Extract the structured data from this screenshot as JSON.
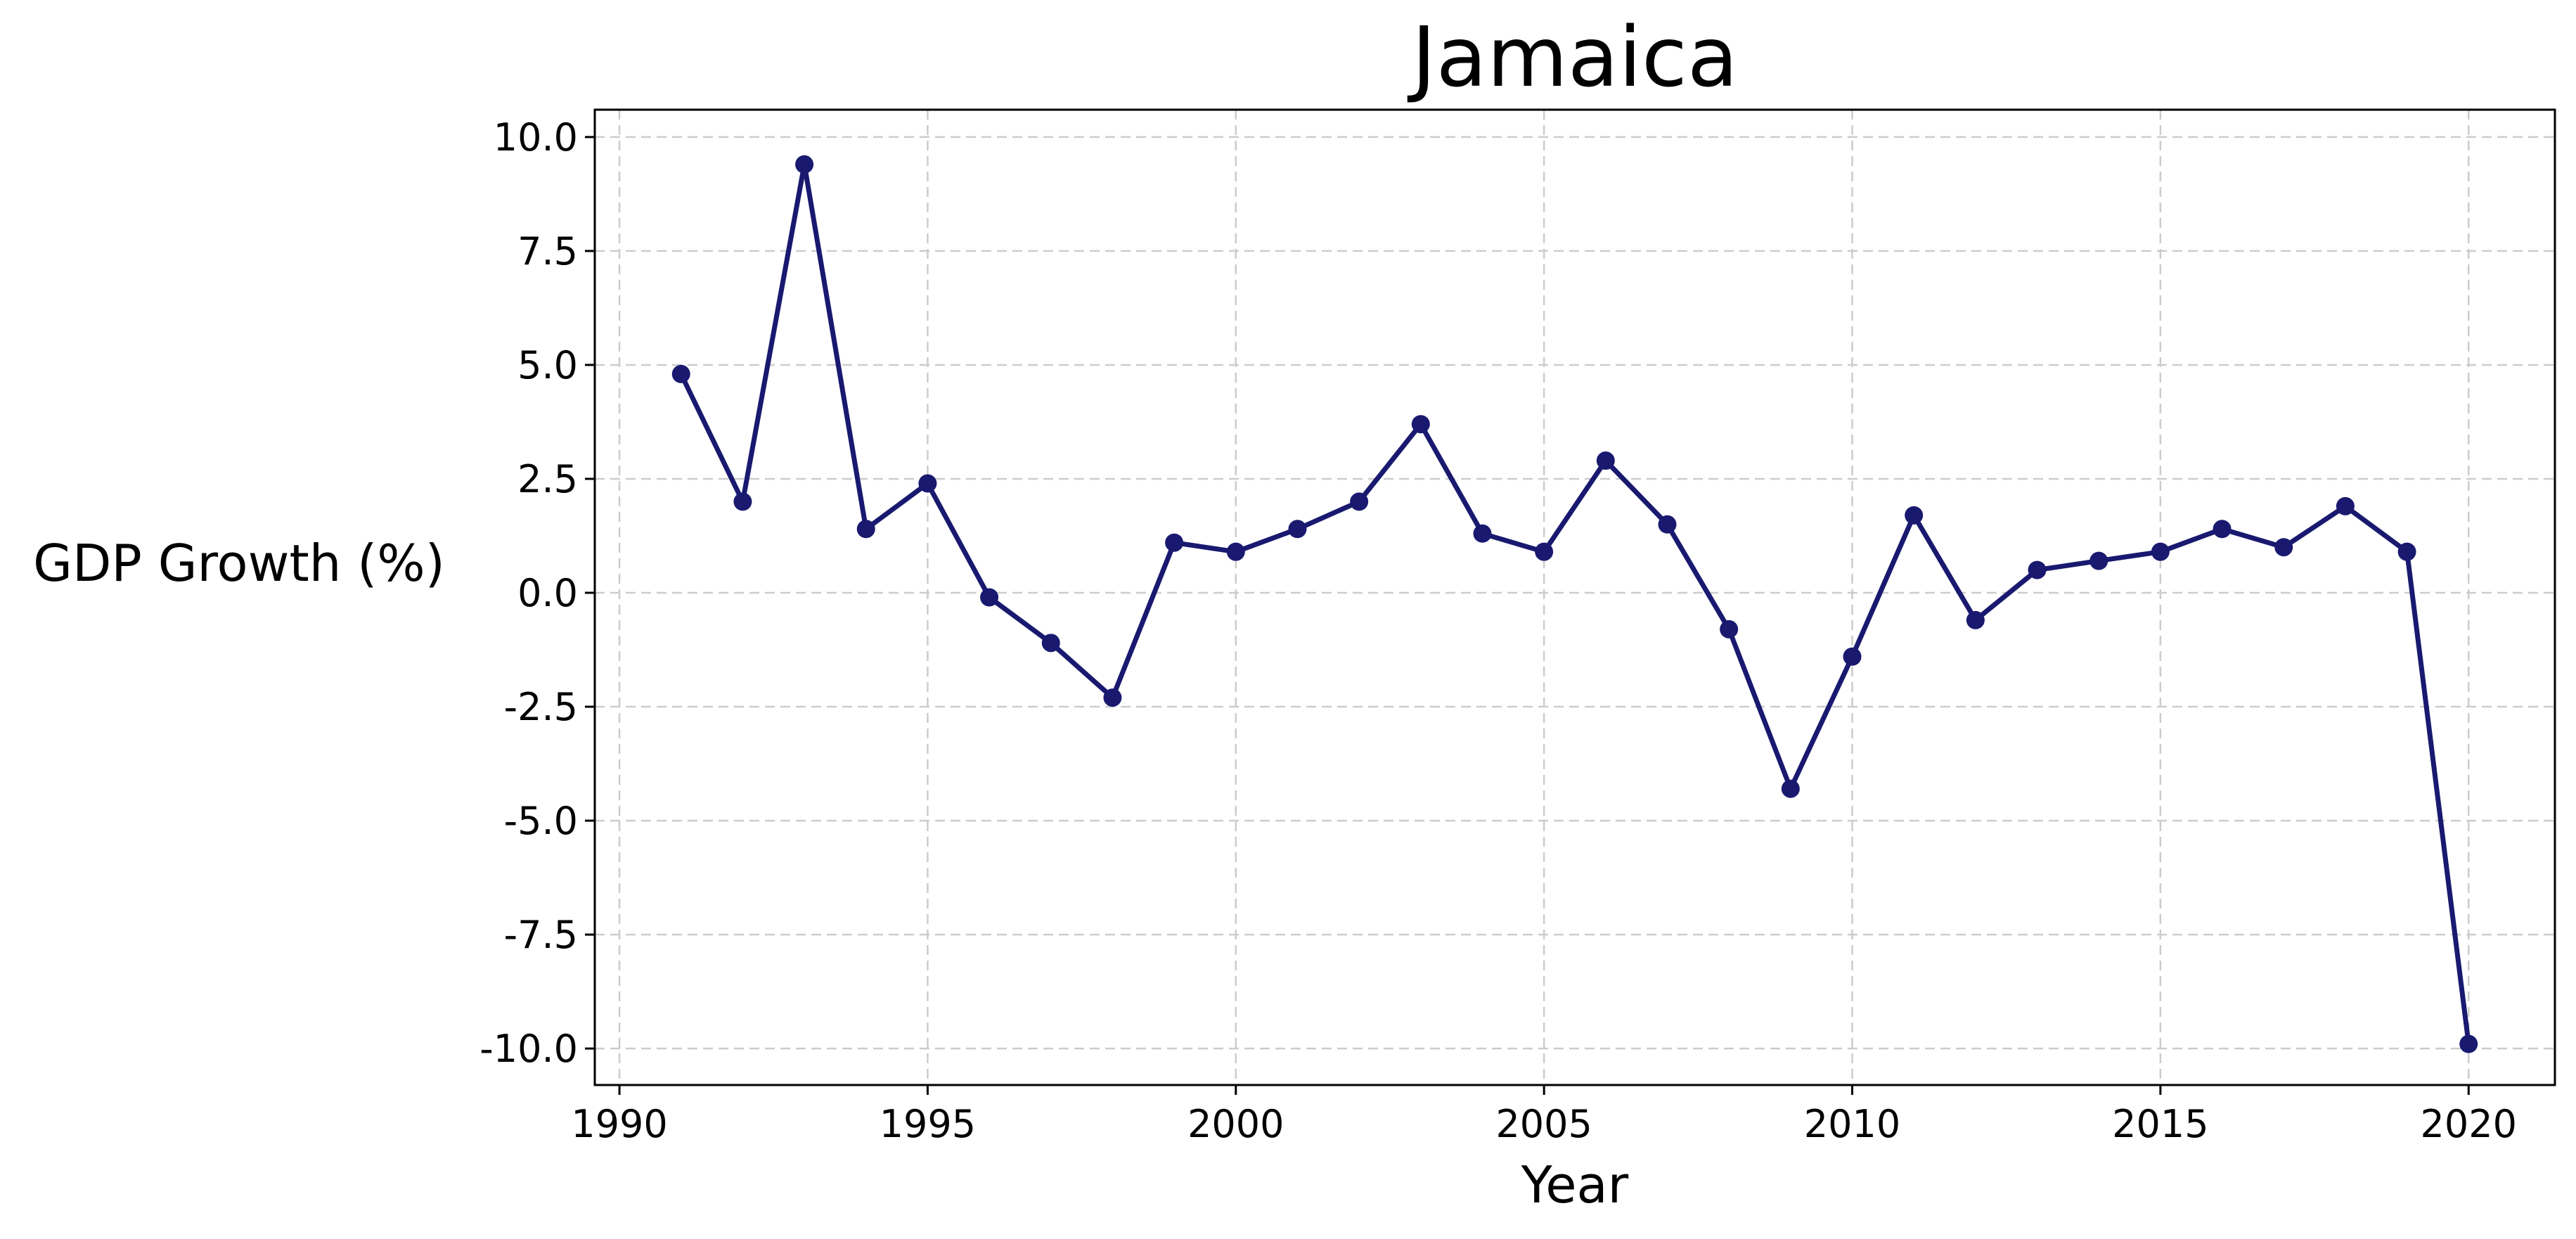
{
  "chart_data": {
    "type": "line",
    "title": "Jamaica",
    "xlabel": "Year",
    "ylabel": "GDP Growth (%)",
    "xlim": [
      1989.6,
      2021.4
    ],
    "ylim": [
      -10.8,
      10.6
    ],
    "xticks": [
      1990,
      1995,
      2000,
      2005,
      2010,
      2015,
      2020
    ],
    "yticks": [
      10.0,
      7.5,
      5.0,
      2.5,
      0.0,
      -2.5,
      -5.0,
      -7.5,
      -10.0
    ],
    "grid": true,
    "line_color": "#191970",
    "series": [
      {
        "x": [
          1991,
          1992,
          1993,
          1994,
          1995,
          1996,
          1997,
          1998,
          1999,
          2000,
          2001,
          2002,
          2003,
          2004,
          2005,
          2006,
          2007,
          2008,
          2009,
          2010,
          2011,
          2012,
          2013,
          2014,
          2015,
          2016,
          2017,
          2018,
          2019,
          2020
        ],
        "values": [
          4.8,
          2.0,
          9.4,
          1.4,
          2.4,
          -0.1,
          -1.1,
          -2.3,
          1.1,
          0.9,
          1.4,
          2.0,
          3.7,
          1.3,
          0.9,
          2.9,
          1.5,
          -0.8,
          -4.3,
          -1.4,
          1.7,
          -0.6,
          0.5,
          0.7,
          0.9,
          1.4,
          1.0,
          1.9,
          0.9,
          -9.9
        ]
      }
    ]
  }
}
